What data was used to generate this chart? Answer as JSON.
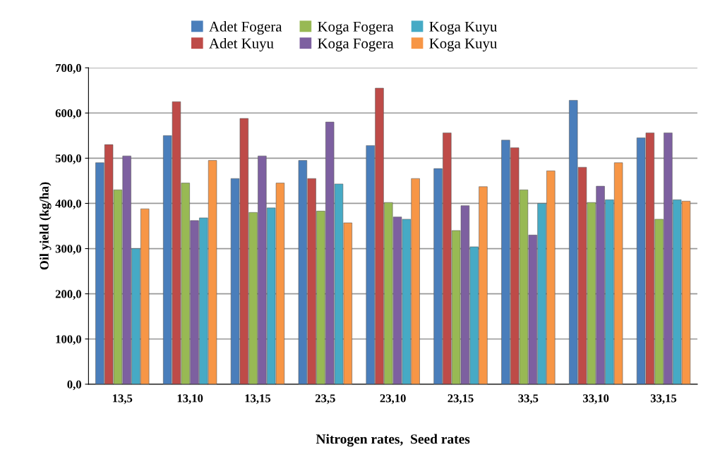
{
  "chart_data": {
    "type": "bar",
    "xlabel": "Nitrogen rates,  Seed rates",
    "ylabel": "Oil yield (kg/ha)",
    "categories": [
      "13,5",
      "13,10",
      "13,15",
      "23,5",
      "23,10",
      "23,15",
      "33,5",
      "33,10",
      "33,15"
    ],
    "series": [
      {
        "name": "Adet Fogera",
        "color": "#4a7ebb",
        "values": [
          490,
          550,
          455,
          495,
          528,
          477,
          540,
          628,
          545
        ]
      },
      {
        "name": "Adet Kuyu",
        "color": "#be4b48",
        "values": [
          530,
          625,
          588,
          455,
          655,
          556,
          523,
          480,
          556
        ]
      },
      {
        "name": "Koga Fogera",
        "color": "#98b954",
        "values": [
          430,
          445,
          380,
          383,
          402,
          340,
          430,
          402,
          365
        ]
      },
      {
        "name": "Koga Fogera",
        "color": "#7d60a0",
        "values": [
          505,
          362,
          505,
          580,
          370,
          395,
          330,
          438,
          556
        ]
      },
      {
        "name": "Koga Kuyu",
        "color": "#46aac5",
        "values": [
          300,
          368,
          390,
          443,
          365,
          304,
          400,
          408,
          408
        ]
      },
      {
        "name": "Koga Kuyu",
        "color": "#f79646",
        "values": [
          388,
          495,
          445,
          357,
          455,
          437,
          472,
          490,
          405
        ]
      }
    ],
    "ylim": [
      0,
      700
    ],
    "yticks": [
      {
        "value": 0,
        "label": "0,0"
      },
      {
        "value": 100,
        "label": "100,0"
      },
      {
        "value": 200,
        "label": "200,0"
      },
      {
        "value": 300,
        "label": "300,0"
      },
      {
        "value": 400,
        "label": "400,0"
      },
      {
        "value": 500,
        "label": "500,0"
      },
      {
        "value": 600,
        "label": "600,0"
      },
      {
        "value": 700,
        "label": "700,0"
      }
    ],
    "grid": "y",
    "legend": "top"
  }
}
